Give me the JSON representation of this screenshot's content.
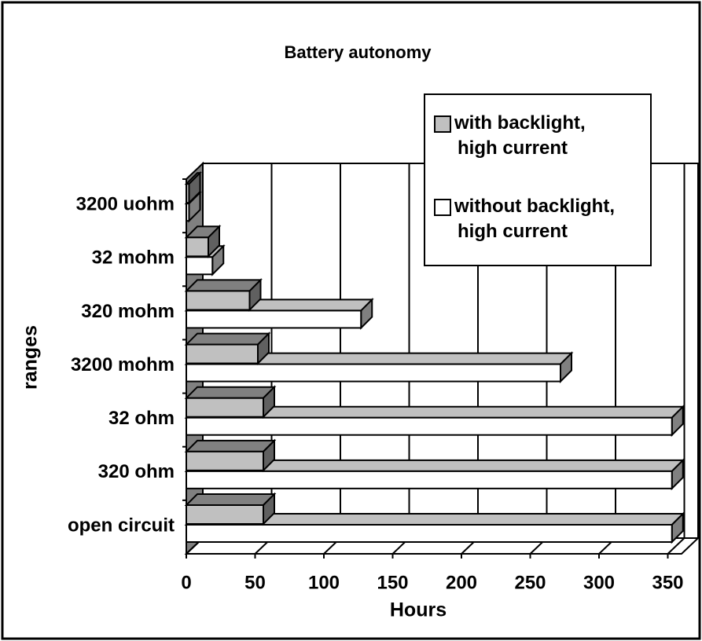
{
  "chart_data": {
    "type": "bar3d",
    "orientation": "horizontal",
    "title": "Battery autonomy",
    "x_label": "Hours",
    "y_label": "ranges",
    "categories": [
      "open circuit",
      "320 ohm",
      "32 ohm",
      "3200 mohm",
      "320 mohm",
      "32 mohm",
      "3200 uohm"
    ],
    "series": [
      {
        "name": "with backlight, high current",
        "color": "#c0c0c0",
        "values": [
          56,
          56,
          56,
          52,
          46,
          16,
          2
        ]
      },
      {
        "name": "without backlight, high current",
        "color": "#ffffff",
        "values": [
          353,
          353,
          353,
          272,
          127,
          19,
          2
        ]
      }
    ],
    "xlim": [
      0,
      360
    ],
    "xticks": [
      0,
      50,
      100,
      150,
      200,
      250,
      300,
      350
    ],
    "grid": true,
    "legend": "upper right"
  }
}
